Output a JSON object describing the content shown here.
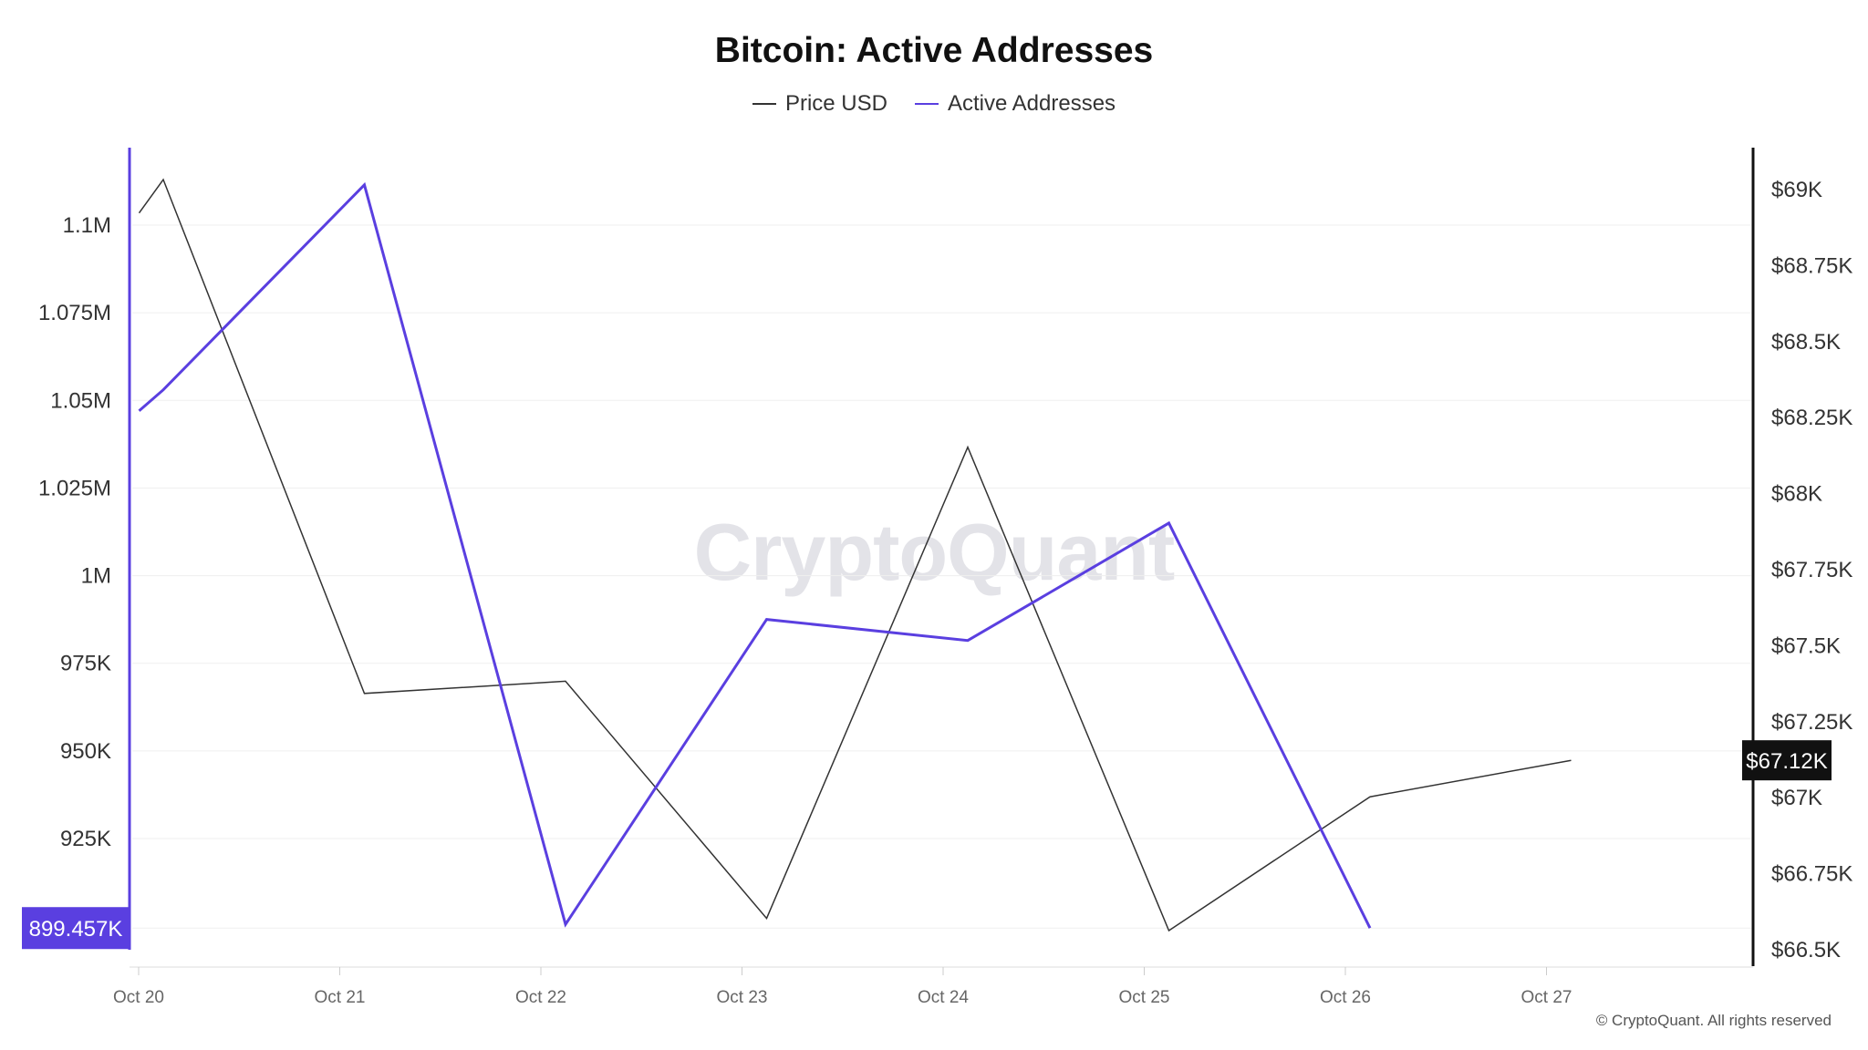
{
  "chart_data": {
    "type": "line",
    "title": "Bitcoin: Active Addresses",
    "x": [
      "Oct 20",
      "Oct 20",
      "Oct 21",
      "Oct 22",
      "Oct 23",
      "Oct 24",
      "Oct 25",
      "Oct 26",
      "Oct 27"
    ],
    "x_ticks": [
      "Oct 20",
      "Oct 21",
      "Oct 22",
      "Oct 23",
      "Oct 24",
      "Oct 25",
      "Oct 26",
      "Oct 27"
    ],
    "series": [
      {
        "name": "Price USD",
        "axis": "right",
        "color": "#333333",
        "points": [
          [
            -0.12,
            68.92
          ],
          [
            0.0,
            69.03
          ],
          [
            1.0,
            67.34
          ],
          [
            2.0,
            67.38
          ],
          [
            3.0,
            66.6
          ],
          [
            4.0,
            68.15
          ],
          [
            5.0,
            66.56
          ],
          [
            6.0,
            67.0
          ],
          [
            7.0,
            67.12
          ]
        ]
      },
      {
        "name": "Active Addresses",
        "axis": "left",
        "color": "#5a3fe0",
        "points": [
          [
            -0.12,
            1047000
          ],
          [
            0.0,
            1053000
          ],
          [
            1.0,
            1111500
          ],
          [
            2.0,
            900500
          ],
          [
            3.0,
            987500
          ],
          [
            4.0,
            981500
          ],
          [
            5.0,
            1015000
          ],
          [
            6.0,
            899457
          ]
        ]
      }
    ],
    "y_left": {
      "ticks": [
        "1.1M",
        "1.075M",
        "1.05M",
        "1.025M",
        "1M",
        "975K",
        "950K",
        "925K"
      ],
      "tick_values": [
        1100000,
        1075000,
        1050000,
        1025000,
        1000000,
        975000,
        950000,
        925000
      ],
      "range": [
        899457,
        1110000
      ]
    },
    "y_right": {
      "ticks": [
        "$69K",
        "$68.75K",
        "$68.5K",
        "$68.25K",
        "$68K",
        "$67.75K",
        "$67.5K",
        "$67.25K",
        "$67K",
        "$66.75K",
        "$66.5K"
      ],
      "tick_values": [
        69.0,
        68.75,
        68.5,
        68.25,
        68.0,
        67.75,
        67.5,
        67.25,
        67.0,
        66.75,
        66.5
      ],
      "range": [
        66.5,
        69.0
      ]
    },
    "last_value_labels": {
      "left": "899.457K",
      "right": "$67.12K"
    },
    "grid": true,
    "legend_position": "top-center"
  },
  "watermark": "CryptoQuant",
  "copyright": "© CryptoQuant. All rights reserved"
}
